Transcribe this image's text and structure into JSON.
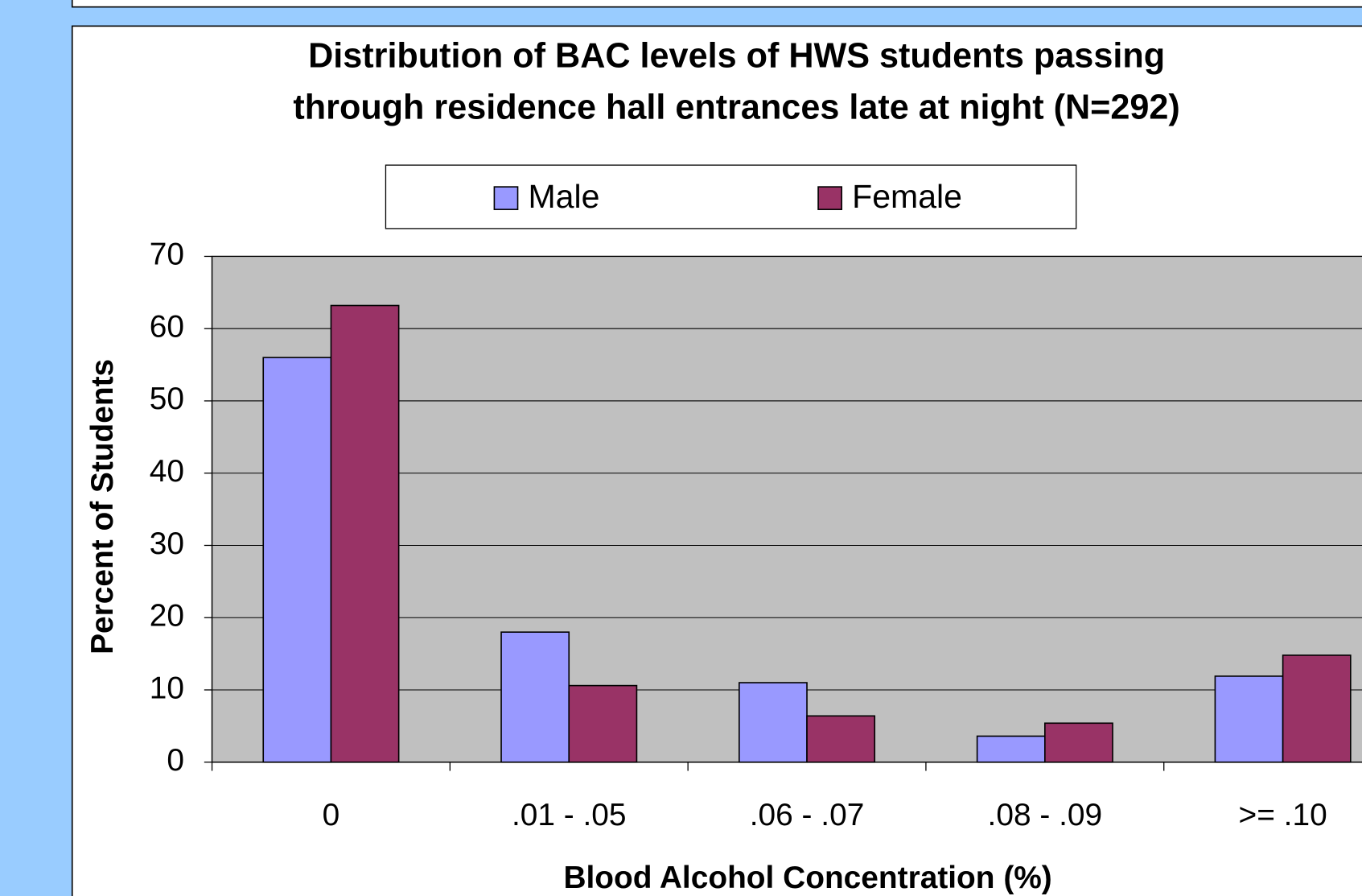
{
  "chart_data": {
    "type": "bar",
    "title": [
      "Distribution of BAC levels of HWS students passing",
      "through residence hall entrances late at night (N=292)"
    ],
    "x_label": "Blood Alcohol Concentration (%)",
    "y_label": "Percent of Students",
    "categories": [
      "0",
      ".01 - .05",
      ".06 - .07",
      ".08 - .09",
      ">= .10"
    ],
    "series": [
      {
        "name": "Male",
        "color": "#9999ff",
        "values": [
          56,
          18,
          11,
          3.6,
          11.9
        ]
      },
      {
        "name": "Female",
        "color": "#993366",
        "values": [
          63.2,
          10.6,
          6.4,
          5.4,
          14.8
        ]
      }
    ],
    "ylim": [
      0,
      70
    ],
    "yticks": [
      0,
      10,
      20,
      30,
      40,
      50,
      60,
      70
    ],
    "grid": true,
    "legend": "top"
  }
}
